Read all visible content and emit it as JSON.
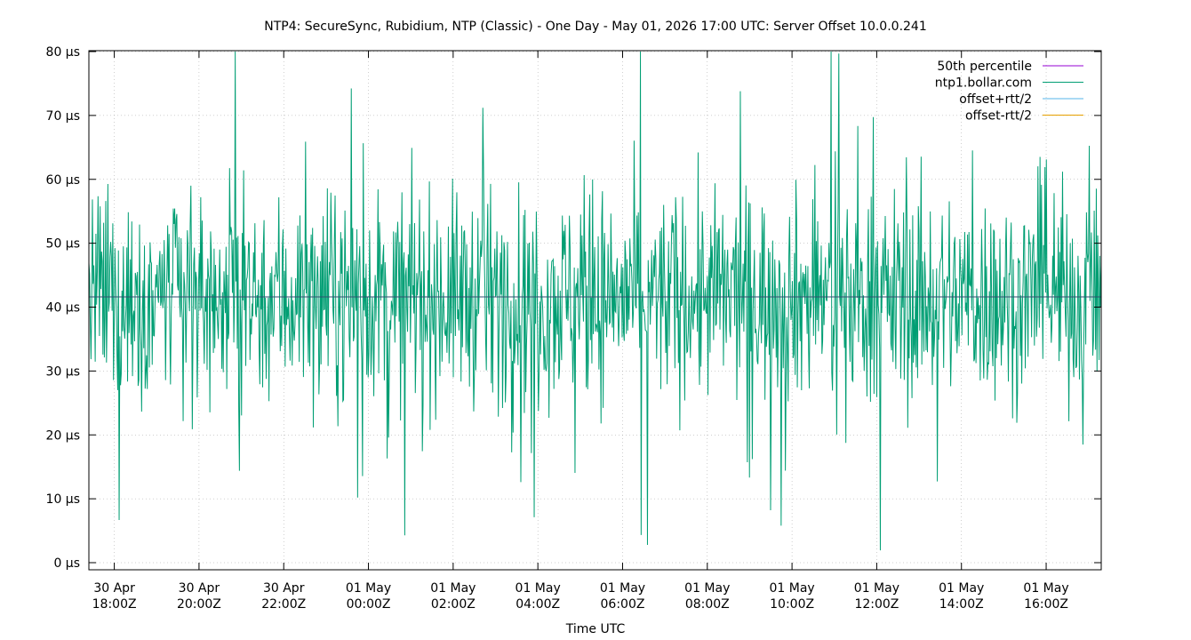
{
  "chart_data": {
    "type": "line",
    "title": "NTP4: SecureSync, Rubidium, NTP (Classic) - One Day - May 01, 2026 17:00 UTC: Server Offset 10.0.0.241",
    "xlabel": "Time UTC",
    "ylabel": "",
    "ylim": [
      0,
      80
    ],
    "y_unit": "µs",
    "y_ticks": [
      {
        "value": 0,
        "label": "0 µs"
      },
      {
        "value": 10,
        "label": "10 µs"
      },
      {
        "value": 20,
        "label": "20 µs"
      },
      {
        "value": 30,
        "label": "30 µs"
      },
      {
        "value": 40,
        "label": "40 µs"
      },
      {
        "value": 50,
        "label": "50 µs"
      },
      {
        "value": 60,
        "label": "60 µs"
      },
      {
        "value": 70,
        "label": "70 µs"
      },
      {
        "value": 80,
        "label": "80 µs"
      }
    ],
    "x_range_hours": [
      17.4,
      41.3
    ],
    "x_ticks": [
      {
        "value": 18,
        "line1": "30 Apr",
        "line2": "18:00Z"
      },
      {
        "value": 20,
        "line1": "30 Apr",
        "line2": "20:00Z"
      },
      {
        "value": 22,
        "line1": "30 Apr",
        "line2": "22:00Z"
      },
      {
        "value": 24,
        "line1": "01 May",
        "line2": "00:00Z"
      },
      {
        "value": 26,
        "line1": "01 May",
        "line2": "02:00Z"
      },
      {
        "value": 28,
        "line1": "01 May",
        "line2": "04:00Z"
      },
      {
        "value": 30,
        "line1": "01 May",
        "line2": "06:00Z"
      },
      {
        "value": 32,
        "line1": "01 May",
        "line2": "08:00Z"
      },
      {
        "value": 34,
        "line1": "01 May",
        "line2": "10:00Z"
      },
      {
        "value": 36,
        "line1": "01 May",
        "line2": "12:00Z"
      },
      {
        "value": 38,
        "line1": "01 May",
        "line2": "14:00Z"
      },
      {
        "value": 40,
        "line1": "01 May",
        "line2": "16:00Z"
      }
    ],
    "grid": true,
    "legend_position": "top-right",
    "series": [
      {
        "name": "50th percentile",
        "color": "#9400d3",
        "constant": 41.6
      },
      {
        "name": "ntp1.bollar.com",
        "color": "#009e73",
        "summary": {
          "median": 41.6,
          "min": 0,
          "max": 80,
          "noisy": true,
          "points": 1440
        }
      },
      {
        "name": "offset+rtt/2",
        "color": "#56b4e9"
      },
      {
        "name": "offset-rtt/2",
        "color": "#e69f00"
      }
    ]
  }
}
